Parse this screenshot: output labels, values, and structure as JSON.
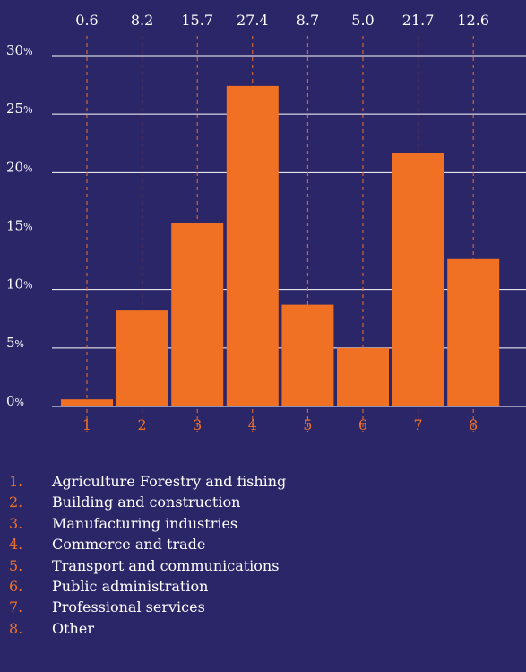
{
  "chart_data": {
    "type": "bar",
    "categories": [
      "1",
      "2",
      "3",
      "4",
      "5",
      "6",
      "7",
      "8"
    ],
    "values": [
      0.6,
      8.2,
      15.7,
      27.4,
      8.7,
      5.0,
      21.7,
      12.6
    ],
    "value_labels": [
      "0.6",
      "8.2",
      "15.7",
      "27.4",
      "8.7",
      "5.0",
      "21.7",
      "12.6"
    ],
    "y_ticks": [
      {
        "value": 0,
        "number": "0",
        "suffix": "%"
      },
      {
        "value": 5,
        "number": "5",
        "suffix": "%"
      },
      {
        "value": 10,
        "number": "10",
        "suffix": "%"
      },
      {
        "value": 15,
        "number": "15",
        "suffix": "%"
      },
      {
        "value": 20,
        "number": "20",
        "suffix": "%"
      },
      {
        "value": 25,
        "number": "25",
        "suffix": "%"
      },
      {
        "value": 30,
        "number": "30",
        "suffix": "%"
      }
    ],
    "ylim": [
      0,
      30
    ],
    "grid": true,
    "title": "",
    "xlabel": "",
    "ylabel": ""
  },
  "legend": [
    {
      "num": "1.",
      "label": "Agriculture Forestry and fishing"
    },
    {
      "num": "2.",
      "label": "Building and construction"
    },
    {
      "num": "3.",
      "label": "Manufacturing industries"
    },
    {
      "num": "4.",
      "label": "Commerce and trade"
    },
    {
      "num": "5.",
      "label": "Transport and communications"
    },
    {
      "num": "6.",
      "label": "Public administration"
    },
    {
      "num": "7.",
      "label": "Professional services"
    },
    {
      "num": "8.",
      "label": "Other"
    }
  ],
  "colors": {
    "background": "#2b2668",
    "bar": "#f07124",
    "gridline": "#ffffff",
    "text": "#ffffff",
    "accent": "#f07124"
  }
}
